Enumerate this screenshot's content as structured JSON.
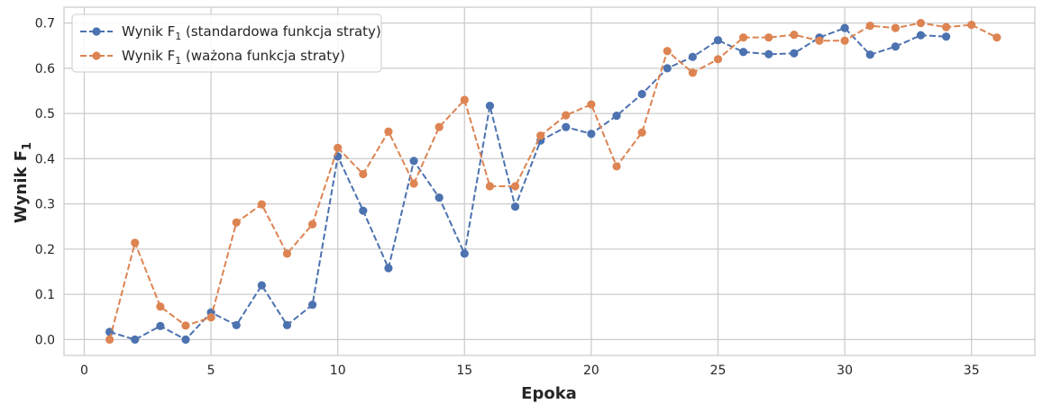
{
  "chart_data": {
    "type": "line",
    "xlabel": "Epoka",
    "ylabel": {
      "main": "Wynik F",
      "sub": "1"
    },
    "xlim": [
      -0.8,
      37.5
    ],
    "ylim": [
      -0.035,
      0.735
    ],
    "xticks": [
      0,
      5,
      10,
      15,
      20,
      25,
      30,
      35
    ],
    "yticks": [
      0.0,
      0.1,
      0.2,
      0.3,
      0.4,
      0.5,
      0.6,
      0.7
    ],
    "ytick_labels": [
      "0.0",
      "0.1",
      "0.2",
      "0.3",
      "0.4",
      "0.5",
      "0.6",
      "0.7"
    ],
    "grid": true,
    "legend_position": "top-left",
    "series": [
      {
        "name": "Wynik F1 (standardowa funkcja straty)",
        "label_parts": {
          "pre": "Wynik F",
          "sub": "1",
          "post": " (standardowa funkcja straty)"
        },
        "color": "#4c72b0",
        "x": [
          1,
          2,
          3,
          4,
          5,
          6,
          7,
          8,
          9,
          10,
          11,
          12,
          13,
          14,
          15,
          16,
          17,
          18,
          19,
          20,
          21,
          22,
          23,
          24,
          25,
          26,
          27,
          28,
          29,
          30,
          31,
          32,
          33,
          34
        ],
        "values": [
          0.017,
          0.0,
          0.03,
          0.0,
          0.06,
          0.032,
          0.12,
          0.032,
          0.077,
          0.405,
          0.285,
          0.158,
          0.395,
          0.314,
          0.19,
          0.517,
          0.294,
          0.44,
          0.47,
          0.455,
          0.495,
          0.543,
          0.6,
          0.625,
          0.662,
          0.636,
          0.631,
          0.633,
          0.668,
          0.689,
          0.63,
          0.648,
          0.673,
          0.67
        ]
      },
      {
        "name": "Wynik F1 (ważona funkcja straty)",
        "label_parts": {
          "pre": "Wynik F",
          "sub": "1",
          "post": " (ważona funkcja straty)"
        },
        "color": "#dd8452",
        "x": [
          1,
          2,
          3,
          4,
          5,
          6,
          7,
          8,
          9,
          10,
          11,
          12,
          13,
          14,
          15,
          16,
          17,
          18,
          19,
          20,
          21,
          22,
          23,
          24,
          25,
          26,
          27,
          28,
          29,
          30,
          31,
          32,
          33,
          34,
          35,
          36
        ],
        "values": [
          0.0,
          0.214,
          0.073,
          0.031,
          0.049,
          0.259,
          0.299,
          0.19,
          0.255,
          0.424,
          0.366,
          0.46,
          0.345,
          0.47,
          0.53,
          0.339,
          0.339,
          0.451,
          0.496,
          0.52,
          0.383,
          0.458,
          0.638,
          0.59,
          0.62,
          0.668,
          0.668,
          0.674,
          0.661,
          0.661,
          0.694,
          0.689,
          0.7,
          0.691,
          0.696,
          0.668
        ]
      }
    ]
  }
}
